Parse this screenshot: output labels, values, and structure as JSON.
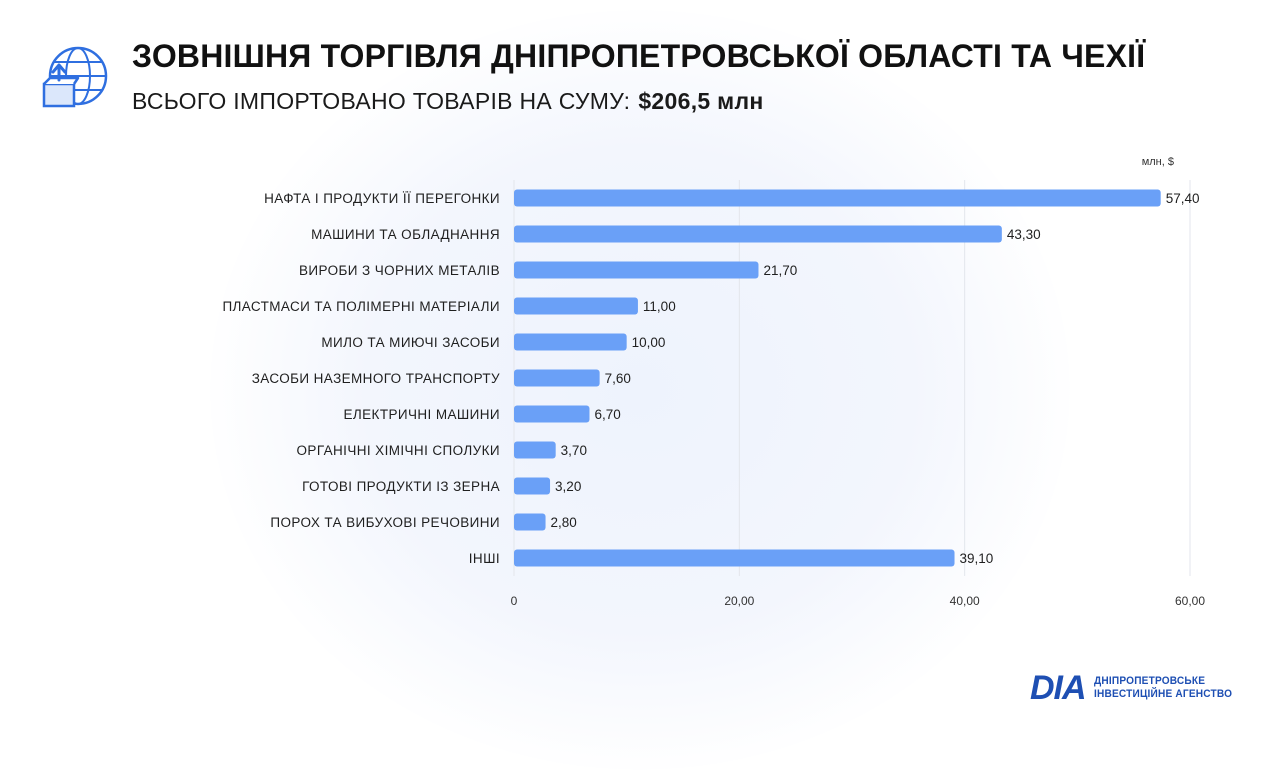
{
  "header": {
    "title": "ЗОВНІШНЯ ТОРГІВЛЯ ДНІПРОПЕТРОВСЬКОЇ ОБЛАСТІ ТА ЧЕХІЇ",
    "subtitle_label": "ВСЬОГО ІМПОРТОВАНО ТОВАРІВ НА СУМУ:",
    "subtitle_total": "$206,5 млн",
    "icon": "globe-box-icon"
  },
  "colors": {
    "bar": "#6aa0f7",
    "grid": "#e3e6ec",
    "brand": "#1e4fb3"
  },
  "chart_data": {
    "type": "bar",
    "orientation": "horizontal",
    "unit": "млн, $",
    "categories": [
      "НАФТА І ПРОДУКТИ ЇЇ ПЕРЕГОНКИ",
      "МАШИНИ ТА ОБЛАДНАННЯ",
      "ВИРОБИ З ЧОРНИХ МЕТАЛІВ",
      "ПЛАСТМАСИ ТА ПОЛІМЕРНІ МАТЕРІАЛИ",
      "МИЛО ТА МИЮЧІ ЗАСОБИ",
      "ЗАСОБИ НАЗЕМНОГО ТРАНСПОРТУ",
      "ЕЛЕКТРИЧНІ МАШИНИ",
      "ОРГАНІЧНІ ХІМІЧНІ СПОЛУКИ",
      "ГОТОВІ ПРОДУКТИ ІЗ ЗЕРНА",
      "ПОРОХ ТА ВИБУХОВІ РЕЧОВИНИ",
      "ІНШІ"
    ],
    "values": [
      57.4,
      43.3,
      21.7,
      11.0,
      10.0,
      7.6,
      6.7,
      3.7,
      3.2,
      2.8,
      39.1
    ],
    "value_labels": [
      "57,40",
      "43,30",
      "21,70",
      "11,00",
      "10,00",
      "7,60",
      "6,70",
      "3,70",
      "3,20",
      "2,80",
      "39,10"
    ],
    "xlim": [
      0,
      60
    ],
    "xticks": [
      0,
      20,
      40,
      60
    ],
    "xtick_labels": [
      "0",
      "20,00",
      "40,00",
      "60,00"
    ],
    "grid": true,
    "legend": "none"
  },
  "footer": {
    "brand_mark": "DIA",
    "brand_line1": "ДНІПРОПЕТРОВСЬКЕ",
    "brand_line2": "ІНВЕСТИЦІЙНЕ АГЕНСТВО"
  }
}
